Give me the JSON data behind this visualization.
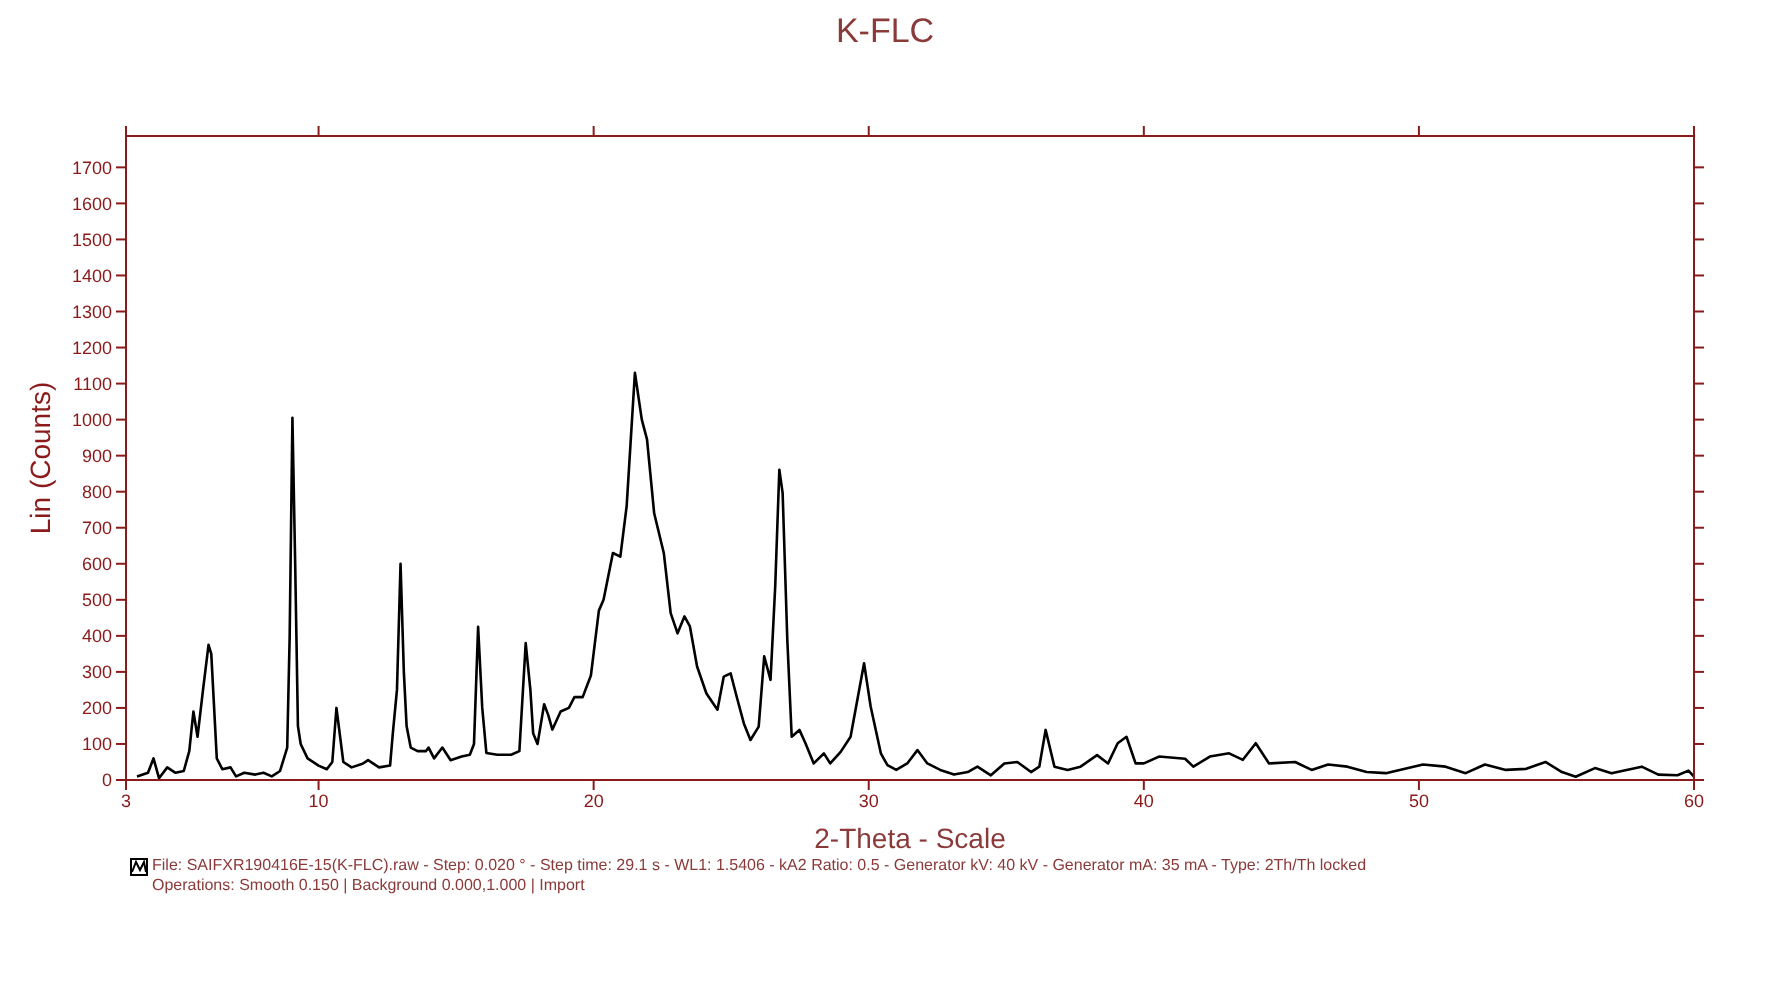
{
  "chart_data": {
    "type": "line",
    "title": "K-FLC",
    "xlabel": "2-Theta - Scale",
    "ylabel": "Lin (Counts)",
    "annotations": [
      "File: SAIFXR190416E-15(K-FLC).raw - Step: 0.020 ° - Step time: 29.1 s - WL1: 1.5406 - kA2 Ratio: 0.5 - Generator kV: 40 kV - Generator mA: 35 mA - Type: 2Th/Th locked",
      "Operations: Smooth 0.150 | Background 0.000,1.000 | Import"
    ],
    "xlim": [
      3,
      60
    ],
    "xticks": [
      3,
      10,
      20,
      30,
      40,
      50,
      60
    ],
    "ylim": [
      0,
      1787
    ],
    "yticks": [
      0,
      100,
      200,
      300,
      400,
      500,
      600,
      700,
      800,
      900,
      1000,
      1100,
      1200,
      1300,
      1400,
      1500,
      1600,
      1700
    ],
    "marker": "none",
    "line_style": "solid",
    "series": [
      {
        "color": "#000000",
        "x": [
          3.4,
          3.8,
          4.0,
          4.2,
          4.5,
          4.8,
          5.1,
          5.3,
          5.45,
          5.6,
          5.8,
          6.0,
          6.1,
          6.3,
          6.5,
          6.8,
          7.0,
          7.3,
          7.7,
          8.0,
          8.3,
          8.6,
          8.86,
          8.95,
          9.05,
          9.15,
          9.25,
          9.35,
          9.6,
          10.0,
          10.3,
          10.5,
          10.65,
          10.9,
          11.2,
          11.6,
          11.8,
          12.2,
          12.6,
          12.7,
          12.85,
          12.98,
          13.1,
          13.2,
          13.35,
          13.6,
          13.9,
          14.0,
          14.2,
          14.5,
          14.8,
          15.2,
          15.5,
          15.65,
          15.8,
          15.95,
          16.1,
          16.5,
          17.0,
          17.3,
          17.53,
          17.7,
          17.8,
          17.96,
          18.2,
          18.35,
          18.5,
          18.8,
          19.1,
          19.3,
          19.6,
          19.9,
          20.19,
          20.36,
          20.7,
          20.97,
          21.2,
          21.5,
          21.75,
          21.94,
          22.2,
          22.55,
          22.8,
          23.05,
          23.3,
          23.5,
          23.76,
          24.1,
          24.5,
          24.73,
          24.98,
          25.2,
          25.46,
          25.7,
          26.0,
          26.2,
          26.43,
          26.6,
          26.75,
          26.87,
          27.04,
          27.2,
          27.48,
          27.7,
          28.0,
          28.37,
          28.6,
          28.98,
          29.34,
          29.83,
          30.07,
          30.44,
          30.68,
          31.0,
          31.4,
          31.77,
          32.13,
          32.6,
          33.1,
          33.6,
          33.95,
          34.44,
          34.93,
          35.4,
          35.9,
          36.2,
          36.43,
          36.75,
          37.23,
          37.7,
          38.3,
          38.7,
          39.05,
          39.37,
          39.7,
          40.0,
          40.55,
          41.5,
          41.8,
          42.4,
          43.1,
          43.6,
          44.07,
          44.55,
          45.5,
          46.1,
          46.7,
          47.4,
          48.1,
          48.8,
          50.15,
          50.97,
          51.7,
          52.4,
          53.16,
          53.9,
          54.6,
          55.2,
          55.7,
          56.4,
          57.0,
          58.1,
          58.7,
          59.4,
          59.8,
          60.0
        ],
        "values": [
          10,
          20,
          60,
          5,
          35,
          20,
          25,
          80,
          190,
          120,
          250,
          375,
          350,
          60,
          30,
          35,
          10,
          20,
          15,
          20,
          10,
          25,
          90,
          400,
          1005,
          600,
          150,
          100,
          60,
          40,
          30,
          50,
          200,
          50,
          35,
          45,
          55,
          35,
          40,
          130,
          250,
          600,
          300,
          150,
          90,
          80,
          80,
          90,
          60,
          90,
          55,
          65,
          70,
          100,
          425,
          200,
          75,
          70,
          70,
          80,
          380,
          250,
          130,
          100,
          210,
          180,
          140,
          190,
          200,
          230,
          230,
          290,
          470,
          500,
          630,
          620,
          760,
          1130,
          1000,
          945,
          740,
          630,
          463,
          407,
          454,
          426,
          315,
          240,
          195,
          287,
          296,
          231,
          157,
          111,
          148,
          343,
          278,
          537,
          861,
          796,
          389,
          120,
          139,
          102,
          46,
          74,
          46,
          78,
          120,
          324,
          204,
          74,
          41,
          28,
          46,
          83,
          46,
          28,
          15,
          22,
          37,
          13,
          46,
          50,
          22,
          37,
          139,
          37,
          28,
          37,
          69,
          46,
          102,
          120,
          46,
          46,
          65,
          59,
          37,
          65,
          74,
          56,
          102,
          46,
          50,
          28,
          43,
          37,
          22,
          19,
          43,
          37,
          19,
          43,
          28,
          31,
          50,
          22,
          9,
          33,
          19,
          37,
          15,
          13,
          26,
          9
        ]
      }
    ]
  }
}
